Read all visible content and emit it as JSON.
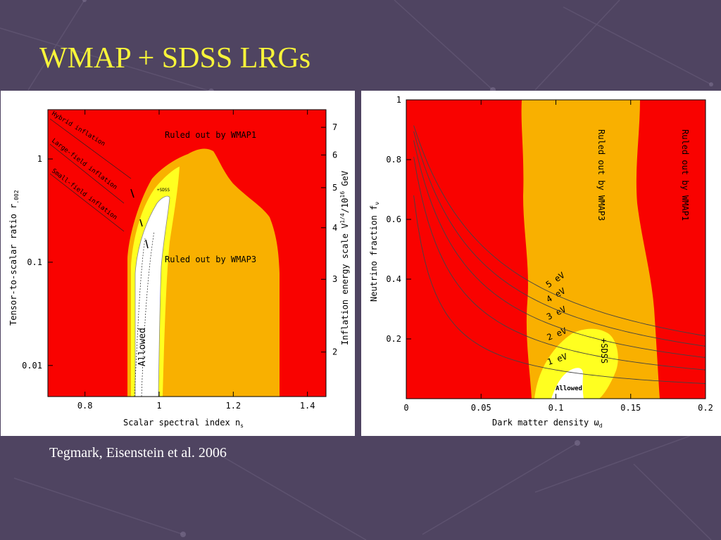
{
  "slide": {
    "title": "WMAP + SDSS LRGs",
    "caption": "Tegmark, Eisenstein et al. 2006"
  },
  "colors": {
    "background": "#4f4461",
    "title": "#f7f43a",
    "ruled_out_wmap1": "#f90200",
    "ruled_out_wmap3": "#f9b000",
    "sdss_region": "#ffff20",
    "allowed": "#ffffff"
  },
  "chart_data": [
    {
      "type": "contour",
      "xlabel": "Scalar spectral index n",
      "xlabel_sub": "s",
      "ylabel": "Tensor-to-scalar ratio r",
      "ylabel_sub": ".002",
      "y2label": "Inflation energy scale V",
      "y2label_sup1": "1/4",
      "y2label_mid": "/10",
      "y2label_sup2": "16",
      "y2label_end": " GeV",
      "xlim": [
        0.7,
        1.45
      ],
      "ylim": [
        0.005,
        3.0
      ],
      "yscale": "log",
      "xticks": [
        "0.8",
        "1",
        "1.2",
        "1.4"
      ],
      "yticks": [
        "0.01",
        "0.1",
        "1"
      ],
      "y2ticks": [
        "2",
        "3",
        "4",
        "5",
        "6",
        "7"
      ],
      "regions": [
        {
          "name": "Ruled out by WMAP1",
          "color": "#f90200"
        },
        {
          "name": "Ruled out by WMAP3",
          "color": "#f9b000"
        },
        {
          "name": "+SDSS",
          "color": "#ffff20"
        },
        {
          "name": "Allowed",
          "color": "#ffffff"
        }
      ],
      "inflation_classes": [
        "Hybrid inflation",
        "Large-field inflation",
        "Small-field inflation"
      ],
      "annotations": [
        "Ruled out by WMAP1",
        "Ruled out by WMAP3",
        "+SDSS",
        "Allowed"
      ],
      "labels": {
        "ruled1": "Ruled out by WMAP1",
        "ruled3": "Ruled out by WMAP3",
        "sdss": "+SDSS",
        "allowed": "Allowed",
        "hybrid": "Hybrid inflation",
        "large": "Large-field inflation",
        "small": "Small-field inflation"
      }
    },
    {
      "type": "contour",
      "xlabel": "Dark matter density ω",
      "xlabel_sub": "d",
      "ylabel": "Neutrino fraction f",
      "ylabel_sub": "ν",
      "xlim": [
        0,
        0.2
      ],
      "ylim": [
        0,
        1
      ],
      "xticks": [
        "0",
        "0.05",
        "0.1",
        "0.15",
        "0.2"
      ],
      "yticks": [
        "0.2",
        "0.4",
        "0.6",
        "0.8",
        "1"
      ],
      "mass_curves_eV": [
        1,
        2,
        3,
        4,
        5
      ],
      "mass_curve_labels": [
        "1 eV",
        "2 eV",
        "3 eV",
        "4 eV",
        "5 eV"
      ],
      "regions": [
        {
          "name": "Ruled out by WMAP1",
          "color": "#f90200"
        },
        {
          "name": "Ruled out by WMAP3",
          "color": "#f9b000"
        },
        {
          "name": "+SDSS",
          "color": "#ffff20"
        },
        {
          "name": "Allowed",
          "color": "#ffffff"
        }
      ],
      "labels": {
        "ruled1": "Ruled out by WMAP1",
        "ruled3": "Ruled out by WMAP3",
        "sdss": "+SDSS",
        "allowed": "Allowed"
      }
    }
  ]
}
